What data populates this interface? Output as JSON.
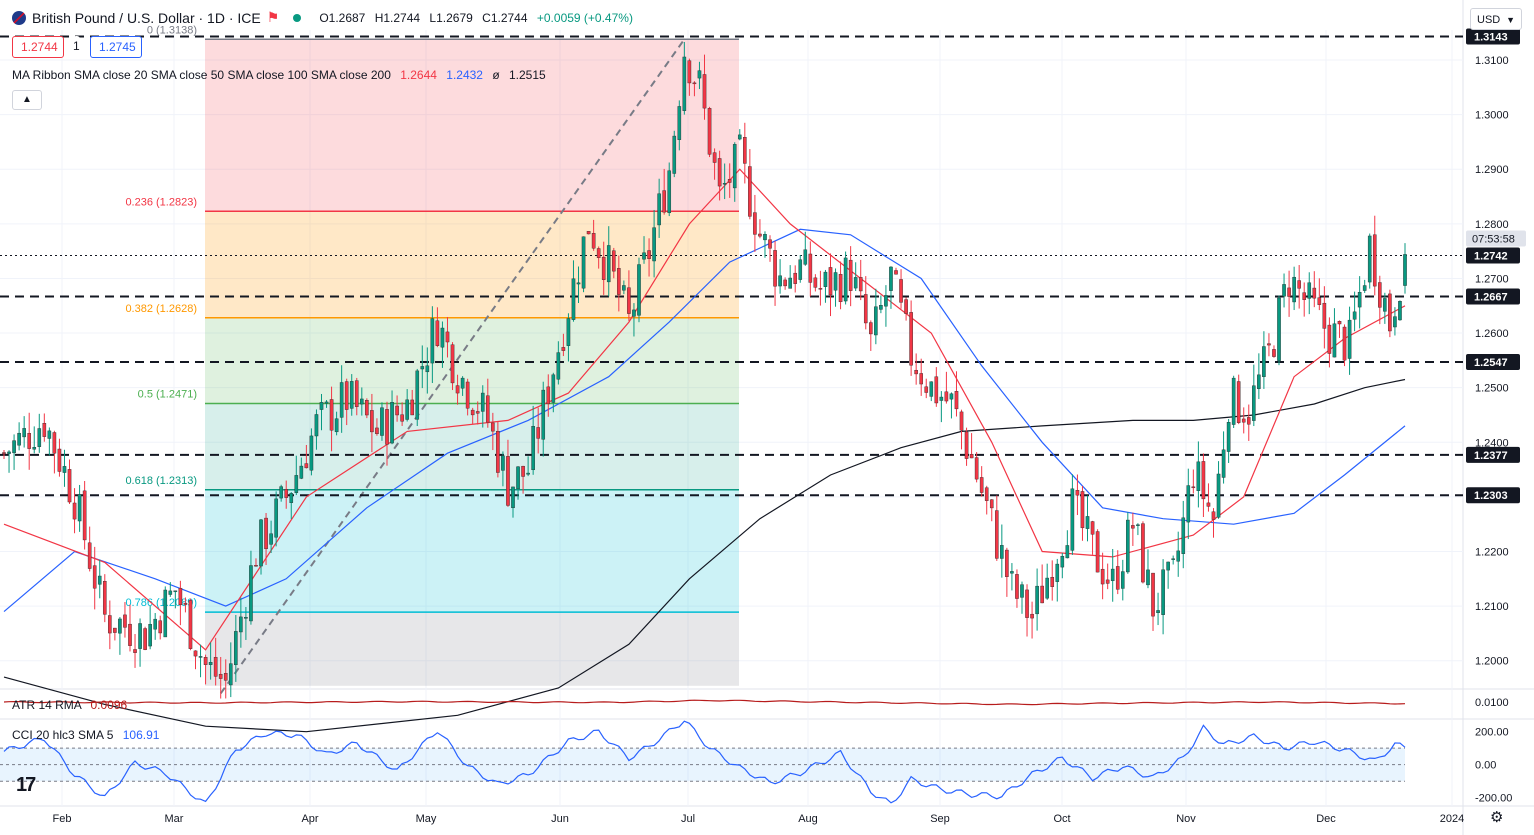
{
  "header": {
    "symbol": "British Pound / U.S. Dollar · 1D · ICE",
    "open": "O1.2687",
    "high": "H1.2744",
    "low": "L1.2679",
    "close": "C1.2744",
    "change": "+0.0059 (+0.47%)",
    "bid": "1.2744",
    "spread": "1",
    "ask": "1.2745"
  },
  "indicators": {
    "ma_ribbon": {
      "label": "MA Ribbon SMA close 20 SMA close 50 SMA close 100 SMA close 200",
      "v1": "1.2644",
      "v2": "1.2432",
      "v3": "ø",
      "v4": "1.2515"
    },
    "atr": {
      "label": "ATR 14 RMA",
      "value": "0.0096"
    },
    "cci": {
      "label": "CCI 20 hlc3 SMA 5",
      "value": "106.91"
    }
  },
  "currency": "USD",
  "colors": {
    "up": "#089981",
    "down": "#f23645",
    "sma20": "#f23645",
    "sma50": "#2962ff",
    "sma200": "#131722",
    "atr": "#b71c1c",
    "cci": "#2962ff"
  },
  "chart_data": {
    "type": "candlestick",
    "x_months": [
      "Feb",
      "Mar",
      "Apr",
      "May",
      "Jun",
      "Jul",
      "Aug",
      "Sep",
      "Oct",
      "Nov",
      "Dec",
      "2024"
    ],
    "ylim": [
      1.195,
      1.3155
    ],
    "y_ticks": [
      "1.3100",
      "1.3000",
      "1.2900",
      "1.2800",
      "1.2700",
      "1.2600",
      "1.2500",
      "1.2400",
      "1.2300",
      "1.2200",
      "1.2100",
      "1.2000"
    ],
    "horizontal_levels": [
      {
        "label": "1.3143",
        "value": 1.3143
      },
      {
        "label": "1.2742",
        "value": 1.2742
      },
      {
        "label": "1.2667",
        "value": 1.2667
      },
      {
        "label": "1.2547",
        "value": 1.2547
      },
      {
        "label": "1.2377",
        "value": 1.2377
      },
      {
        "label": "1.2303",
        "value": 1.2303
      }
    ],
    "countdown": "07:53:58",
    "fibonacci": [
      {
        "label": "0 (1.3138)",
        "value": 1.3138,
        "color": "#787b86"
      },
      {
        "label": "0.236 (1.2823)",
        "value": 1.2823,
        "color": "#f23645"
      },
      {
        "label": "0.382 (1.2628)",
        "value": 1.2628,
        "color": "#ff9800"
      },
      {
        "label": "0.5 (1.2471)",
        "value": 1.2471,
        "color": "#4caf50"
      },
      {
        "label": "0.618 (1.2313)",
        "value": 1.2313,
        "color": "#089981"
      },
      {
        "label": "0.786 (1.2089)",
        "value": 1.2089,
        "color": "#00bcd4"
      }
    ],
    "fib_bottom": 1.1954,
    "keypoints": [
      [
        0,
        1.238
      ],
      [
        8,
        1.244
      ],
      [
        14,
        1.23
      ],
      [
        20,
        1.208
      ],
      [
        28,
        1.205
      ],
      [
        34,
        1.213
      ],
      [
        40,
        1.199
      ],
      [
        44,
        1.196
      ],
      [
        50,
        1.22
      ],
      [
        56,
        1.23
      ],
      [
        62,
        1.243
      ],
      [
        68,
        1.248
      ],
      [
        74,
        1.242
      ],
      [
        80,
        1.247
      ],
      [
        86,
        1.262
      ],
      [
        90,
        1.253
      ],
      [
        96,
        1.244
      ],
      [
        100,
        1.232
      ],
      [
        104,
        1.235
      ],
      [
        108,
        1.25
      ],
      [
        112,
        1.265
      ],
      [
        116,
        1.28
      ],
      [
        120,
        1.272
      ],
      [
        124,
        1.262
      ],
      [
        128,
        1.275
      ],
      [
        132,
        1.29
      ],
      [
        135,
        1.312
      ],
      [
        138,
        1.305
      ],
      [
        142,
        1.285
      ],
      [
        146,
        1.292
      ],
      [
        150,
        1.278
      ],
      [
        154,
        1.27
      ],
      [
        158,
        1.272
      ],
      [
        162,
        1.268
      ],
      [
        168,
        1.271
      ],
      [
        172,
        1.258
      ],
      [
        176,
        1.27
      ],
      [
        180,
        1.256
      ],
      [
        184,
        1.25
      ],
      [
        188,
        1.247
      ],
      [
        192,
        1.237
      ],
      [
        196,
        1.225
      ],
      [
        200,
        1.213
      ],
      [
        204,
        1.208
      ],
      [
        208,
        1.218
      ],
      [
        212,
        1.228
      ],
      [
        216,
        1.22
      ],
      [
        220,
        1.214
      ],
      [
        224,
        1.225
      ],
      [
        228,
        1.21
      ],
      [
        232,
        1.215
      ],
      [
        236,
        1.235
      ],
      [
        240,
        1.226
      ],
      [
        243,
        1.248
      ],
      [
        247,
        1.246
      ],
      [
        251,
        1.256
      ],
      [
        255,
        1.27
      ],
      [
        259,
        1.265
      ],
      [
        263,
        1.26
      ],
      [
        267,
        1.258
      ],
      [
        271,
        1.276
      ],
      [
        275,
        1.262
      ],
      [
        278,
        1.2744
      ]
    ],
    "candle_count": 279,
    "sma": {
      "sma20": [
        [
          0,
          1.225
        ],
        [
          20,
          1.218
        ],
        [
          40,
          1.202
        ],
        [
          60,
          1.23
        ],
        [
          80,
          1.242
        ],
        [
          100,
          1.244
        ],
        [
          112,
          1.249
        ],
        [
          124,
          1.262
        ],
        [
          136,
          1.28
        ],
        [
          146,
          1.29
        ],
        [
          156,
          1.28
        ],
        [
          170,
          1.27
        ],
        [
          184,
          1.26
        ],
        [
          196,
          1.24
        ],
        [
          206,
          1.22
        ],
        [
          220,
          1.219
        ],
        [
          236,
          1.223
        ],
        [
          246,
          1.23
        ],
        [
          256,
          1.252
        ],
        [
          266,
          1.259
        ],
        [
          278,
          1.265
        ]
      ],
      "sma50": [
        [
          0,
          1.209
        ],
        [
          14,
          1.22
        ],
        [
          30,
          1.215
        ],
        [
          44,
          1.21
        ],
        [
          56,
          1.215
        ],
        [
          72,
          1.228
        ],
        [
          88,
          1.238
        ],
        [
          104,
          1.244
        ],
        [
          120,
          1.252
        ],
        [
          132,
          1.262
        ],
        [
          144,
          1.273
        ],
        [
          158,
          1.279
        ],
        [
          168,
          1.278
        ],
        [
          182,
          1.27
        ],
        [
          194,
          1.254
        ],
        [
          206,
          1.24
        ],
        [
          218,
          1.228
        ],
        [
          230,
          1.226
        ],
        [
          244,
          1.225
        ],
        [
          256,
          1.227
        ],
        [
          266,
          1.234
        ],
        [
          278,
          1.243
        ]
      ],
      "sma200": [
        [
          0,
          1.197
        ],
        [
          20,
          1.192
        ],
        [
          40,
          1.188
        ],
        [
          60,
          1.187
        ],
        [
          90,
          1.19
        ],
        [
          110,
          1.195
        ],
        [
          124,
          1.203
        ],
        [
          136,
          1.215
        ],
        [
          150,
          1.226
        ],
        [
          164,
          1.234
        ],
        [
          178,
          1.239
        ],
        [
          190,
          1.242
        ],
        [
          206,
          1.243
        ],
        [
          224,
          1.244
        ],
        [
          236,
          1.244
        ],
        [
          248,
          1.245
        ],
        [
          260,
          1.247
        ],
        [
          270,
          1.25
        ],
        [
          278,
          1.2515
        ]
      ]
    },
    "atr": {
      "ylim": [
        0.006,
        0.013
      ],
      "y_tick": "0.0100",
      "points": [
        [
          0,
          0.01
        ],
        [
          40,
          0.0098
        ],
        [
          80,
          0.0101
        ],
        [
          120,
          0.0099
        ],
        [
          140,
          0.0104
        ],
        [
          170,
          0.0099
        ],
        [
          200,
          0.0094
        ],
        [
          220,
          0.0097
        ],
        [
          250,
          0.01
        ],
        [
          278,
          0.0096
        ]
      ]
    },
    "cci": {
      "ylim": [
        -250,
        270
      ],
      "y_ticks": [
        "200.00",
        "0.00",
        "-200.00"
      ],
      "band": [
        -100,
        100
      ],
      "points": [
        [
          0,
          80
        ],
        [
          8,
          160
        ],
        [
          14,
          -60
        ],
        [
          20,
          -200
        ],
        [
          26,
          10
        ],
        [
          32,
          -50
        ],
        [
          40,
          -240
        ],
        [
          46,
          90
        ],
        [
          52,
          190
        ],
        [
          58,
          180
        ],
        [
          64,
          60
        ],
        [
          70,
          130
        ],
        [
          78,
          -40
        ],
        [
          86,
          210
        ],
        [
          92,
          -10
        ],
        [
          98,
          -120
        ],
        [
          104,
          -60
        ],
        [
          112,
          140
        ],
        [
          118,
          200
        ],
        [
          124,
          40
        ],
        [
          128,
          110
        ],
        [
          132,
          200
        ],
        [
          135,
          270
        ],
        [
          140,
          100
        ],
        [
          146,
          -20
        ],
        [
          152,
          -110
        ],
        [
          158,
          -50
        ],
        [
          166,
          70
        ],
        [
          172,
          -160
        ],
        [
          176,
          -240
        ],
        [
          180,
          -90
        ],
        [
          186,
          -150
        ],
        [
          192,
          -180
        ],
        [
          198,
          -190
        ],
        [
          204,
          -60
        ],
        [
          210,
          40
        ],
        [
          216,
          -80
        ],
        [
          222,
          -10
        ],
        [
          228,
          -80
        ],
        [
          234,
          40
        ],
        [
          238,
          220
        ],
        [
          242,
          120
        ],
        [
          248,
          170
        ],
        [
          254,
          100
        ],
        [
          260,
          140
        ],
        [
          266,
          90
        ],
        [
          272,
          20
        ],
        [
          276,
          120
        ],
        [
          278,
          106.91
        ]
      ]
    }
  }
}
